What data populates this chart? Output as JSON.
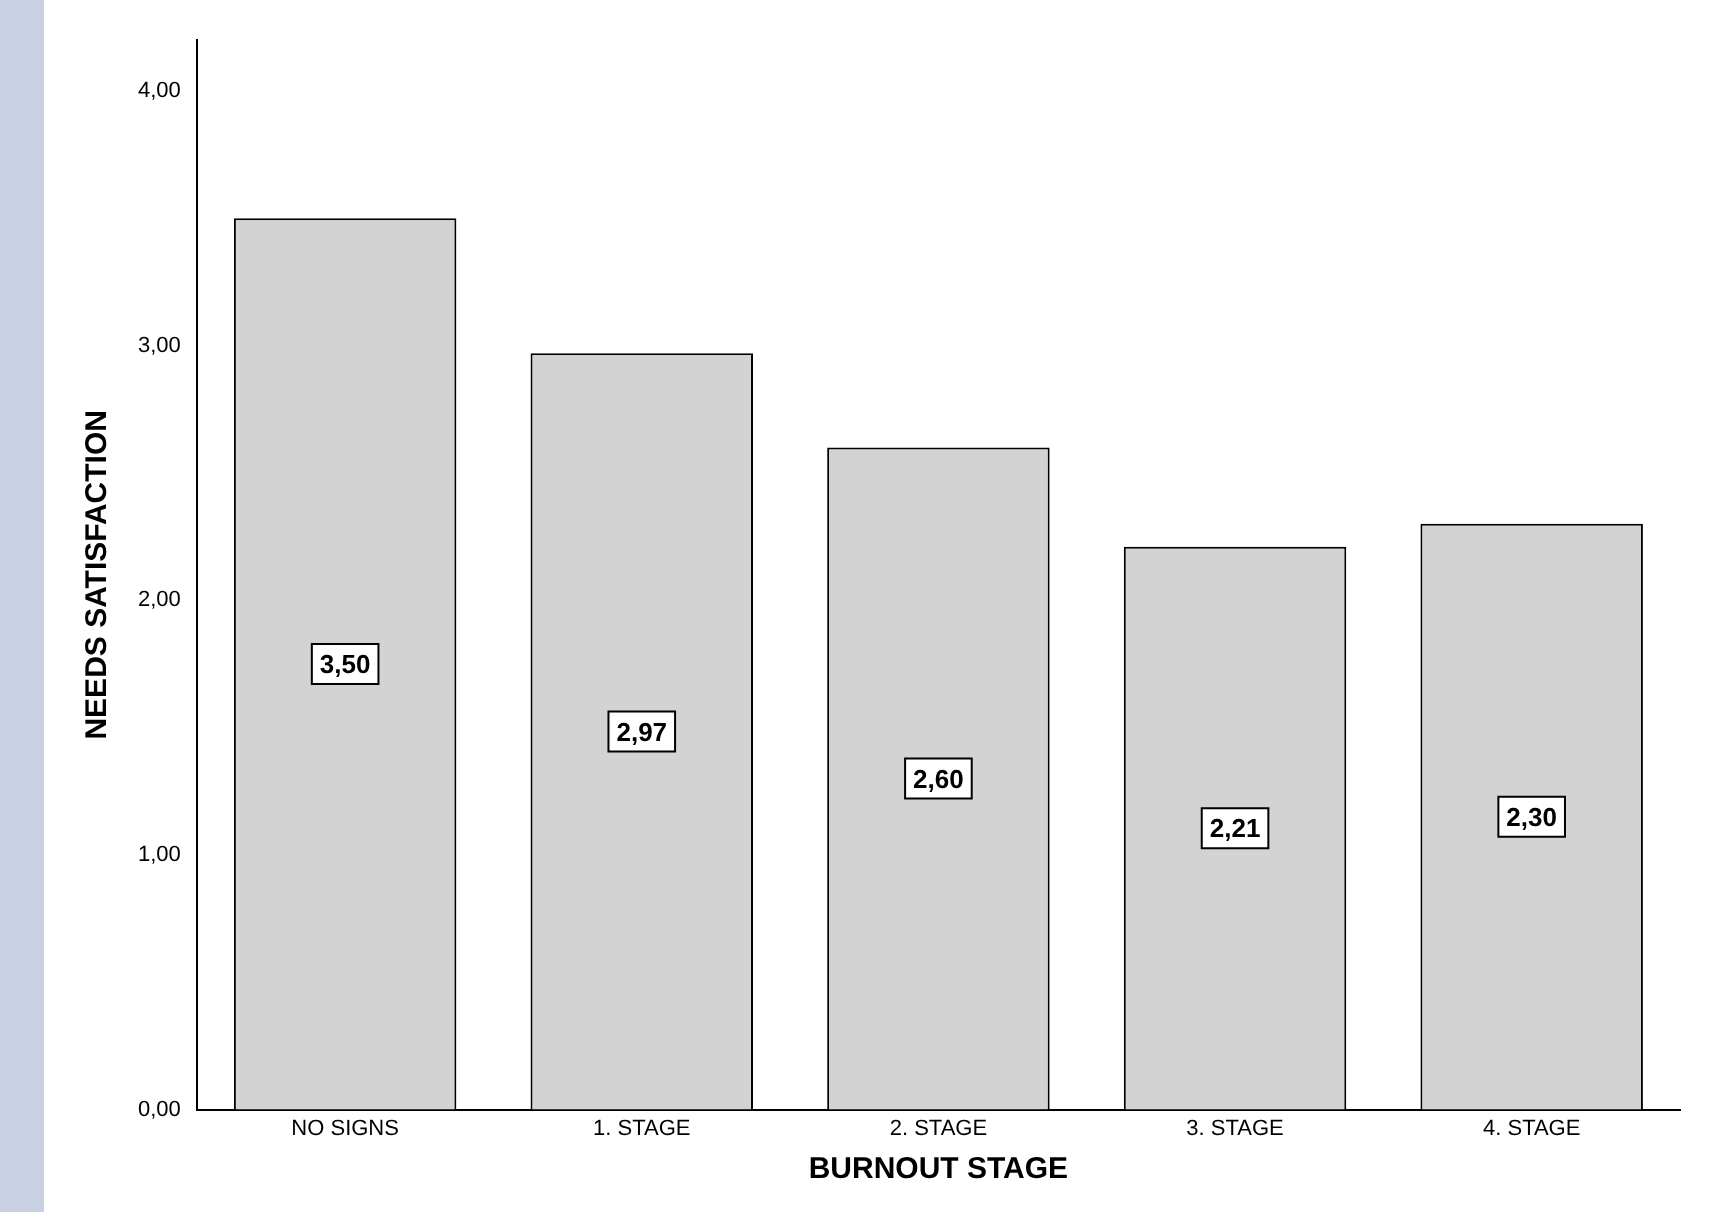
{
  "chart_data": {
    "type": "bar",
    "xlabel": "BURNOUT STAGE",
    "ylabel": "NEEDS SATISFACTION",
    "categories": [
      "NO SIGNS",
      "1. STAGE",
      "2. STAGE",
      "3. STAGE",
      "4. STAGE"
    ],
    "values": [
      3.5,
      2.97,
      2.6,
      2.21,
      2.3
    ],
    "value_labels": [
      "3,50",
      "2,97",
      "2,60",
      "2,21",
      "2,30"
    ],
    "color": "#d3d3d3",
    "ylim": [
      0,
      4.2
    ],
    "yticks": [
      {
        "value": 0,
        "label": "0,00"
      },
      {
        "value": 1,
        "label": "1,00"
      },
      {
        "value": 2,
        "label": "2,00"
      },
      {
        "value": 3,
        "label": "3,00"
      },
      {
        "value": 4,
        "label": "4,00"
      }
    ],
    "grid": false,
    "legend": false
  }
}
